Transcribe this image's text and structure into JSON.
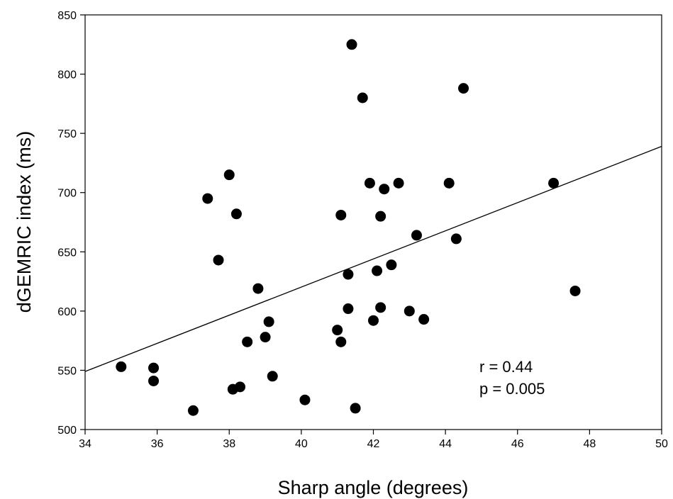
{
  "chart_data": {
    "type": "scatter",
    "title": "",
    "xlabel": "Sharp angle (degrees)",
    "ylabel": "dGEMRIC index (ms)",
    "xlim": [
      34,
      50
    ],
    "ylim": [
      500,
      850
    ],
    "x_ticks": [
      34,
      36,
      38,
      40,
      42,
      44,
      46,
      48,
      50
    ],
    "y_ticks": [
      500,
      550,
      600,
      650,
      700,
      750,
      800,
      850
    ],
    "grid": false,
    "legend": "none",
    "marker_color": "#000000",
    "points": [
      {
        "x": 35.0,
        "y": 553
      },
      {
        "x": 35.9,
        "y": 552
      },
      {
        "x": 35.9,
        "y": 541
      },
      {
        "x": 37.0,
        "y": 516
      },
      {
        "x": 37.4,
        "y": 695
      },
      {
        "x": 37.7,
        "y": 643
      },
      {
        "x": 38.0,
        "y": 715
      },
      {
        "x": 38.1,
        "y": 534
      },
      {
        "x": 38.2,
        "y": 682
      },
      {
        "x": 38.3,
        "y": 536
      },
      {
        "x": 38.5,
        "y": 574
      },
      {
        "x": 38.8,
        "y": 619
      },
      {
        "x": 39.0,
        "y": 578
      },
      {
        "x": 39.1,
        "y": 591
      },
      {
        "x": 39.2,
        "y": 545
      },
      {
        "x": 40.1,
        "y": 525
      },
      {
        "x": 41.0,
        "y": 584
      },
      {
        "x": 41.1,
        "y": 574
      },
      {
        "x": 41.1,
        "y": 681
      },
      {
        "x": 41.3,
        "y": 631
      },
      {
        "x": 41.3,
        "y": 602
      },
      {
        "x": 41.4,
        "y": 825
      },
      {
        "x": 41.5,
        "y": 518
      },
      {
        "x": 41.7,
        "y": 780
      },
      {
        "x": 41.9,
        "y": 708
      },
      {
        "x": 42.0,
        "y": 592
      },
      {
        "x": 42.1,
        "y": 634
      },
      {
        "x": 42.2,
        "y": 680
      },
      {
        "x": 42.2,
        "y": 603
      },
      {
        "x": 42.3,
        "y": 703
      },
      {
        "x": 42.5,
        "y": 639
      },
      {
        "x": 42.7,
        "y": 708
      },
      {
        "x": 43.0,
        "y": 600
      },
      {
        "x": 43.2,
        "y": 664
      },
      {
        "x": 43.4,
        "y": 593
      },
      {
        "x": 44.1,
        "y": 708
      },
      {
        "x": 44.3,
        "y": 661
      },
      {
        "x": 44.5,
        "y": 788
      },
      {
        "x": 47.0,
        "y": 708
      },
      {
        "x": 47.6,
        "y": 617
      }
    ],
    "regression_line": {
      "x": [
        34,
        50
      ],
      "y": [
        549,
        739
      ]
    },
    "annotations": {
      "r": "r = 0.44",
      "p": "p = 0.005"
    }
  }
}
